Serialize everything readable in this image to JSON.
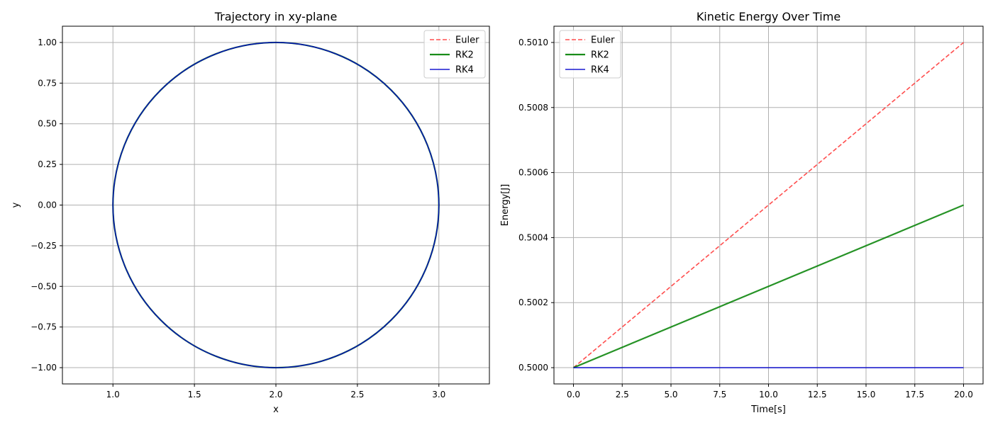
{
  "chart_data": [
    {
      "type": "line",
      "title": "Trajectory in xy-plane",
      "xlabel": "x",
      "ylabel": "y",
      "xlim": [
        0.69,
        3.31
      ],
      "ylim": [
        -1.1,
        1.1
      ],
      "xticks": [
        1.0,
        1.5,
        2.0,
        2.5,
        3.0
      ],
      "xtick_labels": [
        "1.0",
        "1.5",
        "2.0",
        "2.5",
        "3.0"
      ],
      "yticks": [
        -1.0,
        -0.75,
        -0.5,
        -0.25,
        0.0,
        0.25,
        0.5,
        0.75,
        1.0
      ],
      "ytick_labels": [
        "−1.00",
        "−0.75",
        "−0.50",
        "−0.25",
        "0.00",
        "0.25",
        "0.50",
        "0.75",
        "1.00"
      ],
      "grid": true,
      "legend_position": "top-right",
      "series": [
        {
          "name": "Euler",
          "color": "#ff3b3b",
          "style": "dashed",
          "shape": "circle",
          "center": [
            2.0,
            0.0
          ],
          "radius": 1.0
        },
        {
          "name": "RK2",
          "color": "#008000",
          "style": "solid",
          "shape": "circle",
          "center": [
            2.0,
            0.0
          ],
          "radius": 1.0
        },
        {
          "name": "RK4",
          "color": "#0000cc",
          "style": "solid",
          "shape": "circle",
          "center": [
            2.0,
            0.0
          ],
          "radius": 1.0
        }
      ]
    },
    {
      "type": "line",
      "title": "Kinetic Energy Over Time",
      "xlabel": "Time[s]",
      "ylabel": "Energy[J]",
      "xlim": [
        -1.0,
        21.0
      ],
      "ylim": [
        0.49995,
        0.50105
      ],
      "xticks": [
        0.0,
        2.5,
        5.0,
        7.5,
        10.0,
        12.5,
        15.0,
        17.5,
        20.0
      ],
      "xtick_labels": [
        "0.0",
        "2.5",
        "5.0",
        "7.5",
        "10.0",
        "12.5",
        "15.0",
        "17.5",
        "20.0"
      ],
      "yticks": [
        0.5,
        0.5002,
        0.5004,
        0.5006,
        0.5008,
        0.501
      ],
      "ytick_labels": [
        "0.5000",
        "0.5002",
        "0.5004",
        "0.5006",
        "0.5008",
        "0.5010"
      ],
      "grid": true,
      "legend_position": "top-left",
      "series": [
        {
          "name": "Euler",
          "color": "#ff3b3b",
          "style": "dashed",
          "x": [
            0.0,
            20.0
          ],
          "y": [
            0.5,
            0.501
          ]
        },
        {
          "name": "RK2",
          "color": "#008000",
          "style": "solid",
          "x": [
            0.0,
            20.0
          ],
          "y": [
            0.5,
            0.5005
          ]
        },
        {
          "name": "RK4",
          "color": "#0000cc",
          "style": "solid",
          "x": [
            0.0,
            20.0
          ],
          "y": [
            0.5,
            0.5
          ]
        }
      ]
    }
  ]
}
